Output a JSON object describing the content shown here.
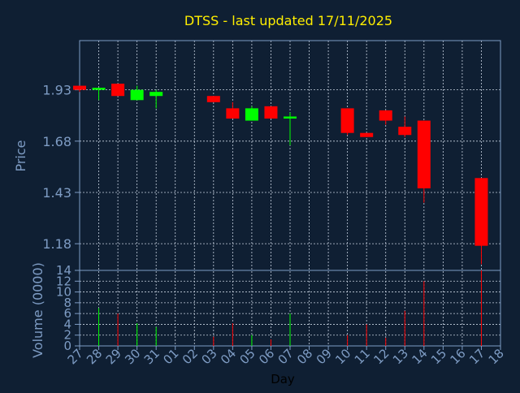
{
  "title": "DTSS - last updated 17/11/2025",
  "colors": {
    "background": "#0f1f33",
    "axis": "#7e9cc4",
    "grid": "#c8d2e0",
    "title": "#ffee00",
    "up": "#00ff00",
    "down": "#ff0000"
  },
  "chart_data": [
    {
      "type": "candlestick",
      "ylabel": "Price",
      "xlabel": "Day",
      "ylim": [
        1.05,
        2.17
      ],
      "y_ticks": [
        "1.18",
        "1.43",
        "1.68",
        "1.93"
      ],
      "grid": true,
      "categories": [
        "27",
        "28",
        "29",
        "30",
        "31",
        "01",
        "02",
        "03",
        "04",
        "05",
        "06",
        "07",
        "10",
        "11",
        "12",
        "13",
        "14",
        "17"
      ],
      "x_ticks": [
        "27",
        "28",
        "29",
        "30",
        "31",
        "01",
        "02",
        "03",
        "04",
        "05",
        "06",
        "07",
        "08",
        "09",
        "10",
        "11",
        "12",
        "13",
        "14",
        "15",
        "16",
        "17",
        "18"
      ],
      "candles": [
        {
          "day": "27",
          "open": 1.95,
          "high": 1.95,
          "low": 1.92,
          "close": 1.93
        },
        {
          "day": "28",
          "open": 1.93,
          "high": 1.94,
          "low": 1.88,
          "close": 1.94
        },
        {
          "day": "29",
          "open": 1.96,
          "high": 1.96,
          "low": 1.9,
          "close": 1.9
        },
        {
          "day": "30",
          "open": 1.88,
          "high": 1.95,
          "low": 1.88,
          "close": 1.93
        },
        {
          "day": "31",
          "open": 1.9,
          "high": 1.93,
          "low": 1.84,
          "close": 1.92
        },
        {
          "day": "03",
          "open": 1.9,
          "high": 1.9,
          "low": 1.87,
          "close": 1.87
        },
        {
          "day": "04",
          "open": 1.84,
          "high": 1.87,
          "low": 1.79,
          "close": 1.79
        },
        {
          "day": "05",
          "open": 1.78,
          "high": 1.85,
          "low": 1.78,
          "close": 1.84
        },
        {
          "day": "06",
          "open": 1.85,
          "high": 1.85,
          "low": 1.79,
          "close": 1.79
        },
        {
          "day": "07",
          "open": 1.79,
          "high": 1.82,
          "low": 1.66,
          "close": 1.8
        },
        {
          "day": "10",
          "open": 1.84,
          "high": 1.84,
          "low": 1.71,
          "close": 1.72
        },
        {
          "day": "11",
          "open": 1.72,
          "high": 1.72,
          "low": 1.7,
          "close": 1.7
        },
        {
          "day": "12",
          "open": 1.83,
          "high": 1.83,
          "low": 1.76,
          "close": 1.78
        },
        {
          "day": "13",
          "open": 1.75,
          "high": 1.8,
          "low": 1.7,
          "close": 1.71
        },
        {
          "day": "14",
          "open": 1.78,
          "high": 1.78,
          "low": 1.38,
          "close": 1.45
        },
        {
          "day": "17",
          "open": 1.5,
          "high": 1.5,
          "low": 1.08,
          "close": 1.17
        }
      ]
    },
    {
      "type": "bar",
      "ylabel": "Volume (0000)",
      "ylim": [
        0,
        14
      ],
      "y_ticks": [
        "0",
        "2",
        "4",
        "6",
        "8",
        "10",
        "12",
        "14"
      ],
      "grid": true,
      "volumes": [
        {
          "day": "28",
          "value": 7.0,
          "color": "up"
        },
        {
          "day": "29",
          "value": 6.0,
          "color": "down"
        },
        {
          "day": "30",
          "value": 4.2,
          "color": "up"
        },
        {
          "day": "31",
          "value": 3.5,
          "color": "up"
        },
        {
          "day": "03",
          "value": 1.7,
          "color": "down"
        },
        {
          "day": "04",
          "value": 4.2,
          "color": "down"
        },
        {
          "day": "05",
          "value": 2.0,
          "color": "up"
        },
        {
          "day": "06",
          "value": 1.2,
          "color": "down"
        },
        {
          "day": "07",
          "value": 6.0,
          "color": "up"
        },
        {
          "day": "10",
          "value": 2.0,
          "color": "down"
        },
        {
          "day": "11",
          "value": 4.0,
          "color": "down"
        },
        {
          "day": "12",
          "value": 1.5,
          "color": "down"
        },
        {
          "day": "13",
          "value": 6.5,
          "color": "down"
        },
        {
          "day": "14",
          "value": 12.0,
          "color": "down"
        },
        {
          "day": "17",
          "value": 14.0,
          "color": "down"
        }
      ]
    }
  ]
}
